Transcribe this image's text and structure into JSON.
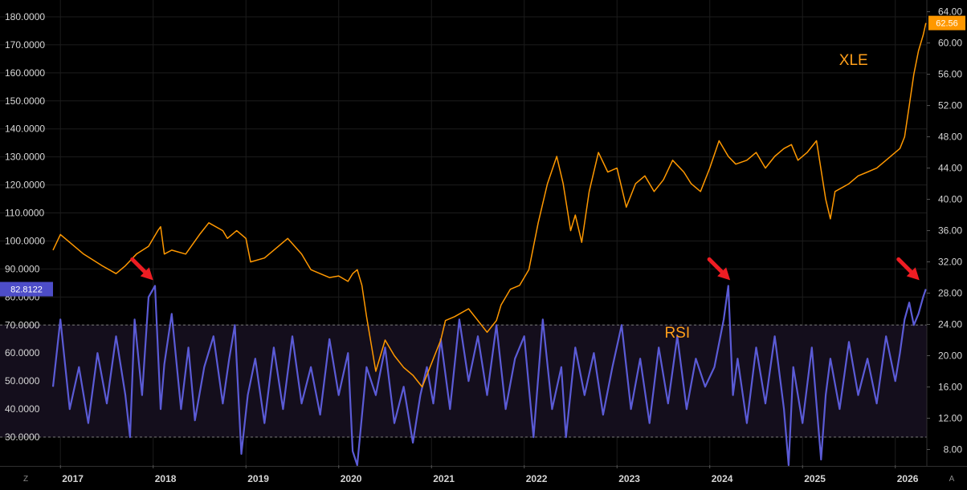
{
  "chart_data": {
    "type": "line",
    "x_ticks": [
      "2017",
      "2018",
      "2019",
      "2020",
      "2021",
      "2022",
      "2023",
      "2024",
      "2025",
      "2026"
    ],
    "x_range": [
      2016.92,
      2026.34
    ],
    "left_axis": {
      "ticks": [
        "180.0000",
        "170.0000",
        "160.0000",
        "150.0000",
        "140.0000",
        "130.0000",
        "120.0000",
        "110.0000",
        "100.0000",
        "90.0000",
        "80.0000",
        "70.0000",
        "60.0000",
        "50.0000",
        "40.0000",
        "30.0000"
      ],
      "range": [
        20,
        186
      ]
    },
    "right_axis": {
      "ticks": [
        "64.00",
        "60.00",
        "56.00",
        "52.00",
        "48.00",
        "44.00",
        "40.00",
        "36.00",
        "32.00",
        "28.00",
        "24.00",
        "20.00",
        "16.00",
        "12.00",
        "8.00"
      ],
      "range": [
        6,
        65.5
      ]
    },
    "rsi_band": {
      "upper": 70,
      "lower": 30
    },
    "series": [
      {
        "name": "XLE",
        "axis": "right",
        "color": "#ff9800",
        "x": [
          2016.92,
          2017.0,
          2017.1,
          2017.25,
          2017.45,
          2017.6,
          2017.7,
          2017.82,
          2017.95,
          2018.05,
          2018.08,
          2018.12,
          2018.2,
          2018.35,
          2018.5,
          2018.6,
          2018.75,
          2018.8,
          2018.9,
          2019.0,
          2019.05,
          2019.2,
          2019.35,
          2019.45,
          2019.6,
          2019.7,
          2019.8,
          2019.9,
          2020.0,
          2020.1,
          2020.15,
          2020.2,
          2020.25,
          2020.3,
          2020.4,
          2020.5,
          2020.6,
          2020.7,
          2020.8,
          2020.9,
          2021.0,
          2021.1,
          2021.15,
          2021.25,
          2021.4,
          2021.5,
          2021.6,
          2021.7,
          2021.75,
          2021.85,
          2021.95,
          2022.05,
          2022.15,
          2022.25,
          2022.35,
          2022.42,
          2022.5,
          2022.55,
          2022.62,
          2022.7,
          2022.8,
          2022.9,
          2023.0,
          2023.1,
          2023.2,
          2023.3,
          2023.4,
          2023.5,
          2023.6,
          2023.72,
          2023.8,
          2023.9,
          2024.0,
          2024.1,
          2024.2,
          2024.28,
          2024.4,
          2024.5,
          2024.6,
          2024.7,
          2024.8,
          2024.88,
          2024.95,
          2025.05,
          2025.15,
          2025.25,
          2025.3,
          2025.35,
          2025.5,
          2025.6,
          2025.7,
          2025.8,
          2025.9,
          2026.0,
          2026.05,
          2026.1,
          2026.15,
          2026.2,
          2026.25,
          2026.3,
          2026.33
        ],
        "values": [
          33.5,
          35.5,
          34.5,
          33.0,
          31.5,
          30.5,
          31.5,
          33.0,
          34.0,
          36.0,
          36.5,
          33.0,
          33.5,
          33.0,
          35.5,
          37.0,
          36.0,
          35.0,
          36.0,
          35.0,
          32.0,
          32.5,
          34.0,
          35.0,
          33.0,
          31.0,
          30.5,
          30.0,
          30.2,
          29.5,
          30.5,
          31.0,
          29.0,
          25.0,
          18.0,
          22.0,
          20.0,
          18.5,
          17.5,
          16.0,
          19.0,
          22.0,
          24.5,
          25.0,
          26.0,
          24.5,
          23.0,
          24.5,
          26.5,
          28.5,
          29.0,
          31.0,
          37.0,
          42.0,
          45.5,
          42.0,
          36.0,
          38.0,
          34.5,
          41.0,
          46.0,
          43.5,
          44.0,
          39.0,
          42.0,
          43.0,
          41.0,
          42.5,
          45.0,
          43.5,
          42.0,
          41.0,
          44.0,
          47.5,
          45.5,
          44.5,
          45.0,
          46.0,
          44.0,
          45.5,
          46.5,
          47.0,
          45.0,
          46.0,
          47.5,
          40.0,
          37.5,
          41.0,
          42.0,
          43.0,
          43.5,
          44.0,
          45.0,
          46.0,
          46.5,
          48.0,
          52.0,
          56.0,
          59.0,
          61.0,
          62.56
        ]
      },
      {
        "name": "RSI",
        "axis": "left",
        "color": "#5b5bd6",
        "x": [
          2016.92,
          2017.0,
          2017.1,
          2017.2,
          2017.3,
          2017.4,
          2017.5,
          2017.6,
          2017.7,
          2017.75,
          2017.8,
          2017.88,
          2017.95,
          2018.02,
          2018.08,
          2018.12,
          2018.2,
          2018.3,
          2018.38,
          2018.45,
          2018.55,
          2018.65,
          2018.75,
          2018.82,
          2018.88,
          2018.95,
          2019.02,
          2019.1,
          2019.2,
          2019.3,
          2019.4,
          2019.5,
          2019.6,
          2019.7,
          2019.8,
          2019.9,
          2020.0,
          2020.1,
          2020.15,
          2020.2,
          2020.3,
          2020.4,
          2020.5,
          2020.6,
          2020.7,
          2020.8,
          2020.88,
          2020.95,
          2021.02,
          2021.1,
          2021.2,
          2021.3,
          2021.4,
          2021.5,
          2021.6,
          2021.7,
          2021.8,
          2021.9,
          2022.0,
          2022.1,
          2022.2,
          2022.3,
          2022.4,
          2022.45,
          2022.55,
          2022.65,
          2022.75,
          2022.85,
          2022.95,
          2023.05,
          2023.15,
          2023.25,
          2023.35,
          2023.45,
          2023.55,
          2023.65,
          2023.75,
          2023.85,
          2023.95,
          2024.05,
          2024.15,
          2024.2,
          2024.25,
          2024.3,
          2024.4,
          2024.5,
          2024.6,
          2024.7,
          2024.8,
          2024.85,
          2024.9,
          2025.0,
          2025.1,
          2025.2,
          2025.25,
          2025.3,
          2025.4,
          2025.5,
          2025.6,
          2025.7,
          2025.8,
          2025.9,
          2026.0,
          2026.05,
          2026.1,
          2026.15,
          2026.2,
          2026.25,
          2026.3,
          2026.33
        ],
        "values": [
          48,
          72,
          40,
          55,
          35,
          60,
          42,
          66,
          45,
          30,
          72,
          45,
          80,
          84,
          40,
          56,
          74,
          40,
          62,
          36,
          55,
          66,
          42,
          58,
          70,
          24,
          45,
          58,
          35,
          62,
          40,
          66,
          42,
          55,
          38,
          65,
          45,
          60,
          25,
          20,
          55,
          45,
          62,
          35,
          48,
          28,
          45,
          55,
          42,
          65,
          40,
          72,
          50,
          66,
          45,
          70,
          40,
          58,
          66,
          30,
          72,
          40,
          55,
          30,
          62,
          45,
          60,
          38,
          55,
          70,
          40,
          58,
          35,
          62,
          42,
          66,
          40,
          58,
          48,
          55,
          72,
          84,
          45,
          58,
          35,
          62,
          42,
          66,
          40,
          20,
          55,
          35,
          62,
          22,
          45,
          58,
          40,
          64,
          45,
          58,
          42,
          66,
          50,
          60,
          72,
          78,
          70,
          74,
          80,
          82.8122
        ]
      }
    ],
    "last_value_labels": {
      "left": "82.8122",
      "right": "62.56"
    },
    "annotations": [
      {
        "text": "XLE",
        "x": 2025.55,
        "y": 57.2,
        "axis": "right"
      },
      {
        "text": "RSI",
        "x": 2023.65,
        "y": 65.5,
        "axis": "left"
      }
    ],
    "arrows": [
      {
        "x": 2018.0,
        "y": 86,
        "axis": "left"
      },
      {
        "x": 2024.22,
        "y": 86,
        "axis": "left"
      },
      {
        "x": 2026.26,
        "y": 86,
        "axis": "left"
      }
    ]
  },
  "corners": {
    "left": "Z",
    "right": "A"
  },
  "colors": {
    "background": "#000000",
    "grid": "#1c1c1c",
    "band_fill": "#140e1c",
    "band_line": "#7a7a7a",
    "left_badge": "#4d4dc8",
    "right_badge": "#ff9800",
    "arrow": "#ee1d23"
  }
}
